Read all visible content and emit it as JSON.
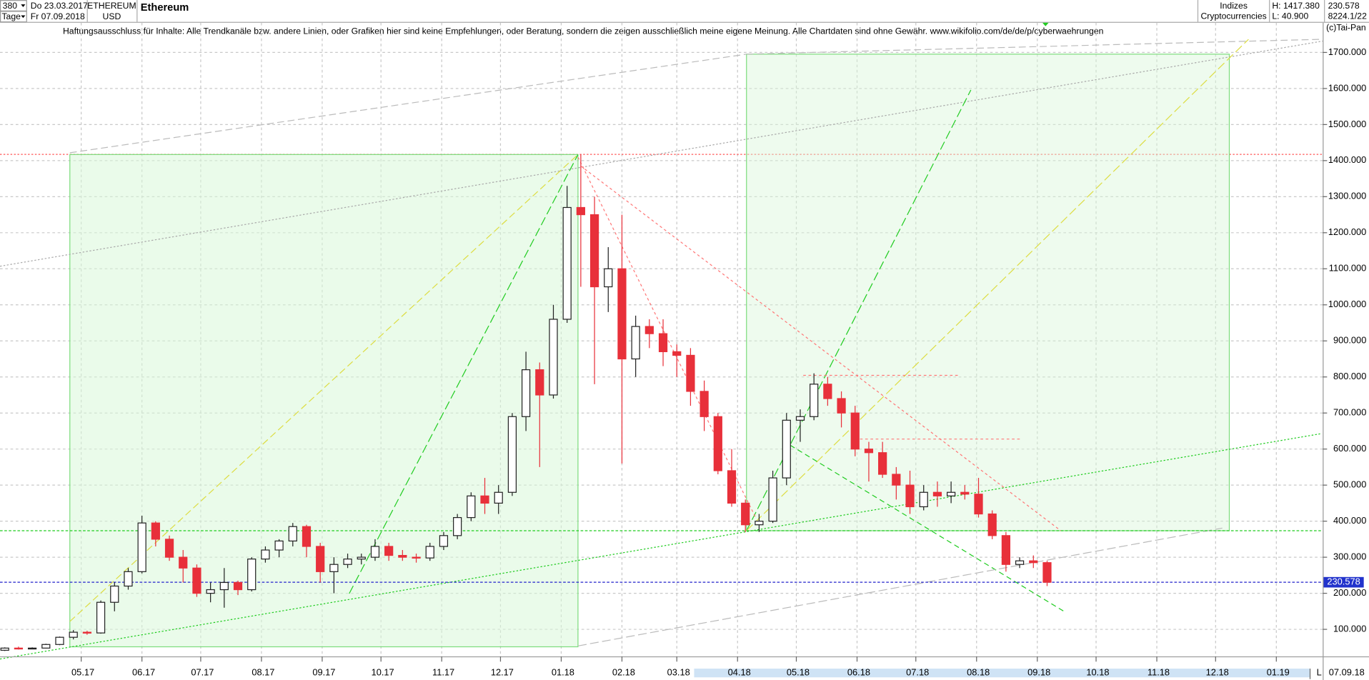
{
  "header": {
    "period_count": "380",
    "period_unit": "Tage",
    "start_date": "Do 23.03.2017",
    "end_date": "Fr 07.09.2018",
    "symbol": "ETHEREUM",
    "currency": "USD",
    "name": "Ethereum",
    "group": "Indizes",
    "subgroup": "Cryptocurrencies",
    "high": "H: 1417.380",
    "low": "L: 40.900",
    "last": "230.578",
    "counter": "8224.1/22",
    "copyright": "(c)Tai-Pan",
    "disclaimer": "Haftungsausschluss für Inhalte: Alle Trendkanäle bzw. andere Linien, oder Grafiken hier sind keine Empfehlungen, oder Beratung, sondern die zeigen ausschließlich meine eigene Meinung. Alle Chartdaten sind ohne Gewähr.  www.wikifolio.com/de/de/p/cyberwaehrungen",
    "footer_date": "07.09.18",
    "footer_mode": "L"
  },
  "chart_data": {
    "type": "candlestick",
    "high_level": 1417.38,
    "last_price": 230.578,
    "up_color": "#ffffff",
    "down_color": "#e8303a",
    "grid": true,
    "xlim": [
      0,
      672
    ],
    "ylim": [
      25,
      1785
    ],
    "yticks": [
      {
        "value": 100,
        "label": "100.000"
      },
      {
        "value": 200,
        "label": "200.000"
      },
      {
        "value": 300,
        "label": "300.000"
      },
      {
        "value": 400,
        "label": "400.000"
      },
      {
        "value": 500,
        "label": "500.000"
      },
      {
        "value": 600,
        "label": "600.000"
      },
      {
        "value": 700,
        "label": "700.000"
      },
      {
        "value": 800,
        "label": "800.000"
      },
      {
        "value": 900,
        "label": "900.000"
      },
      {
        "value": 1000,
        "label": "1000.000"
      },
      {
        "value": 1100,
        "label": "1100.000"
      },
      {
        "value": 1200,
        "label": "1200.000"
      },
      {
        "value": 1300,
        "label": "1300.000"
      },
      {
        "value": 1400,
        "label": "1400.000"
      },
      {
        "value": 1500,
        "label": "1500.000"
      },
      {
        "value": 1600,
        "label": "1600.000"
      },
      {
        "value": 1700,
        "label": "1700.000"
      }
    ],
    "xticks": [
      {
        "value": 39,
        "label": "05.17"
      },
      {
        "value": 70,
        "label": "06.17"
      },
      {
        "value": 100,
        "label": "07.17"
      },
      {
        "value": 131,
        "label": "08.17"
      },
      {
        "value": 162,
        "label": "09.17"
      },
      {
        "value": 192,
        "label": "10.17"
      },
      {
        "value": 223,
        "label": "11.17"
      },
      {
        "value": 253,
        "label": "12.17"
      },
      {
        "value": 284,
        "label": "01.18"
      },
      {
        "value": 315,
        "label": "02.18"
      },
      {
        "value": 343,
        "label": "03.18"
      },
      {
        "value": 374,
        "label": "04.18"
      },
      {
        "value": 404,
        "label": "05.18"
      },
      {
        "value": 435,
        "label": "06.18"
      },
      {
        "value": 465,
        "label": "07.18"
      },
      {
        "value": 496,
        "label": "08.18"
      },
      {
        "value": 527,
        "label": "09.18"
      },
      {
        "value": 557,
        "label": "10.18"
      },
      {
        "value": 588,
        "label": "11.18"
      },
      {
        "value": 618,
        "label": "12.18"
      },
      {
        "value": 649,
        "label": "01.19"
      }
    ],
    "x": [
      0,
      7,
      14,
      21,
      28,
      35,
      42,
      49,
      56,
      63,
      70,
      77,
      84,
      91,
      98,
      105,
      112,
      119,
      126,
      133,
      140,
      147,
      154,
      161,
      168,
      175,
      182,
      189,
      196,
      203,
      210,
      217,
      224,
      231,
      238,
      245,
      252,
      259,
      266,
      273,
      280,
      287,
      294,
      301,
      308,
      315,
      322,
      329,
      336,
      343,
      350,
      357,
      364,
      371,
      378,
      385,
      392,
      399,
      406,
      413,
      420,
      427,
      434,
      441,
      448,
      455,
      462,
      469,
      476,
      483,
      490,
      497,
      504,
      511,
      518,
      525,
      532
    ],
    "candles": [
      [
        42,
        50,
        40,
        48
      ],
      [
        48,
        52,
        44,
        47
      ],
      [
        47,
        50,
        45,
        48
      ],
      [
        48,
        60,
        47,
        58
      ],
      [
        58,
        80,
        56,
        78
      ],
      [
        78,
        98,
        72,
        92
      ],
      [
        92,
        96,
        85,
        90
      ],
      [
        90,
        180,
        88,
        175
      ],
      [
        175,
        230,
        150,
        220
      ],
      [
        220,
        270,
        210,
        260
      ],
      [
        260,
        415,
        255,
        395
      ],
      [
        395,
        400,
        330,
        350
      ],
      [
        350,
        360,
        290,
        300
      ],
      [
        300,
        320,
        230,
        270
      ],
      [
        270,
        280,
        190,
        200
      ],
      [
        200,
        230,
        175,
        210
      ],
      [
        210,
        270,
        160,
        230
      ],
      [
        230,
        235,
        195,
        210
      ],
      [
        210,
        300,
        205,
        295
      ],
      [
        295,
        330,
        285,
        320
      ],
      [
        320,
        350,
        300,
        345
      ],
      [
        345,
        395,
        330,
        385
      ],
      [
        385,
        390,
        300,
        330
      ],
      [
        330,
        340,
        230,
        260
      ],
      [
        260,
        300,
        200,
        280
      ],
      [
        280,
        310,
        270,
        295
      ],
      [
        295,
        310,
        280,
        300
      ],
      [
        300,
        350,
        290,
        330
      ],
      [
        330,
        340,
        290,
        305
      ],
      [
        305,
        320,
        290,
        300
      ],
      [
        300,
        310,
        285,
        298
      ],
      [
        298,
        340,
        290,
        330
      ],
      [
        330,
        370,
        320,
        360
      ],
      [
        360,
        420,
        350,
        410
      ],
      [
        410,
        480,
        400,
        470
      ],
      [
        470,
        520,
        420,
        450
      ],
      [
        450,
        500,
        420,
        480
      ],
      [
        480,
        700,
        470,
        690
      ],
      [
        690,
        870,
        650,
        820
      ],
      [
        820,
        840,
        550,
        750
      ],
      [
        750,
        1000,
        740,
        960
      ],
      [
        960,
        1330,
        950,
        1270
      ],
      [
        1270,
        1417,
        1050,
        1250
      ],
      [
        1250,
        1300,
        780,
        1050
      ],
      [
        1050,
        1160,
        980,
        1100
      ],
      [
        1100,
        1250,
        560,
        850
      ],
      [
        850,
        970,
        800,
        940
      ],
      [
        940,
        960,
        880,
        920
      ],
      [
        920,
        960,
        830,
        870
      ],
      [
        870,
        890,
        800,
        860
      ],
      [
        860,
        880,
        720,
        760
      ],
      [
        760,
        790,
        650,
        690
      ],
      [
        690,
        700,
        530,
        540
      ],
      [
        540,
        600,
        440,
        450
      ],
      [
        450,
        460,
        370,
        390
      ],
      [
        390,
        420,
        370,
        400
      ],
      [
        400,
        540,
        395,
        520
      ],
      [
        520,
        700,
        500,
        680
      ],
      [
        680,
        710,
        620,
        690
      ],
      [
        690,
        810,
        680,
        780
      ],
      [
        780,
        800,
        720,
        740
      ],
      [
        740,
        760,
        660,
        700
      ],
      [
        700,
        720,
        580,
        600
      ],
      [
        600,
        620,
        510,
        590
      ],
      [
        590,
        620,
        520,
        530
      ],
      [
        530,
        550,
        460,
        500
      ],
      [
        500,
        540,
        420,
        440
      ],
      [
        440,
        500,
        430,
        480
      ],
      [
        480,
        510,
        440,
        470
      ],
      [
        470,
        510,
        450,
        480
      ],
      [
        480,
        500,
        460,
        475
      ],
      [
        475,
        520,
        410,
        420
      ],
      [
        420,
        430,
        350,
        360
      ],
      [
        360,
        370,
        260,
        280
      ],
      [
        280,
        300,
        270,
        290
      ],
      [
        290,
        305,
        270,
        285
      ],
      [
        285,
        290,
        220,
        230.578
      ]
    ]
  }
}
